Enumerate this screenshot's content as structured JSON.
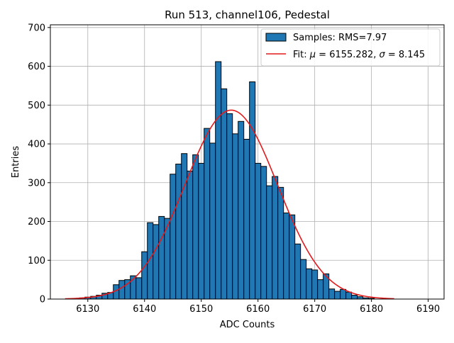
{
  "chart_data": {
    "type": "bar",
    "title": "Run 513, channel106, Pedestal",
    "xlabel": "ADC Counts",
    "ylabel": "Entries",
    "xlim": [
      6123.4,
      6192.8
    ],
    "ylim": [
      0,
      707
    ],
    "xticks": [
      6130,
      6140,
      6150,
      6160,
      6170,
      6180,
      6190
    ],
    "yticks": [
      0,
      100,
      200,
      300,
      400,
      500,
      600,
      700
    ],
    "grid": true,
    "legend_position": "top-right",
    "bin_width": 1,
    "histogram": {
      "name": "Samples: RMS=7.97",
      "color": "#1f77b4",
      "edge_color": "#000000",
      "x": [
        6129,
        6130,
        6131,
        6132,
        6133,
        6134,
        6135,
        6136,
        6137,
        6138,
        6139,
        6140,
        6141,
        6142,
        6143,
        6144,
        6145,
        6146,
        6147,
        6148,
        6149,
        6150,
        6151,
        6152,
        6153,
        6154,
        6155,
        6156,
        6157,
        6158,
        6159,
        6160,
        6161,
        6162,
        6163,
        6164,
        6165,
        6166,
        6167,
        6168,
        6169,
        6170,
        6171,
        6172,
        6173,
        6174,
        6175,
        6176,
        6177,
        6178,
        6179,
        6180
      ],
      "values": [
        3,
        5,
        7,
        10,
        15,
        17,
        37,
        48,
        50,
        60,
        55,
        122,
        197,
        192,
        213,
        208,
        322,
        348,
        375,
        330,
        372,
        350,
        440,
        402,
        612,
        542,
        478,
        426,
        458,
        412,
        560,
        350,
        342,
        292,
        316,
        288,
        222,
        217,
        142,
        102,
        78,
        75,
        50,
        65,
        26,
        20,
        25,
        18,
        10,
        6,
        3,
        2
      ]
    },
    "fit": {
      "name": "Fit: μ = 6155.282, σ = 8.145",
      "color": "#e31a1c",
      "mu": 6155.282,
      "sigma": 8.145,
      "amplitude": 487,
      "x_range": [
        6126,
        6184
      ]
    }
  },
  "legend": {
    "hist_label_prefix": "Samples: RMS=",
    "hist_label_value": "7.97",
    "fit_label_prefix": "Fit: ",
    "fit_mu_symbol": "μ",
    "fit_mu_value": " = 6155.282, ",
    "fit_sigma_symbol": "σ",
    "fit_sigma_value": " = 8.145"
  }
}
